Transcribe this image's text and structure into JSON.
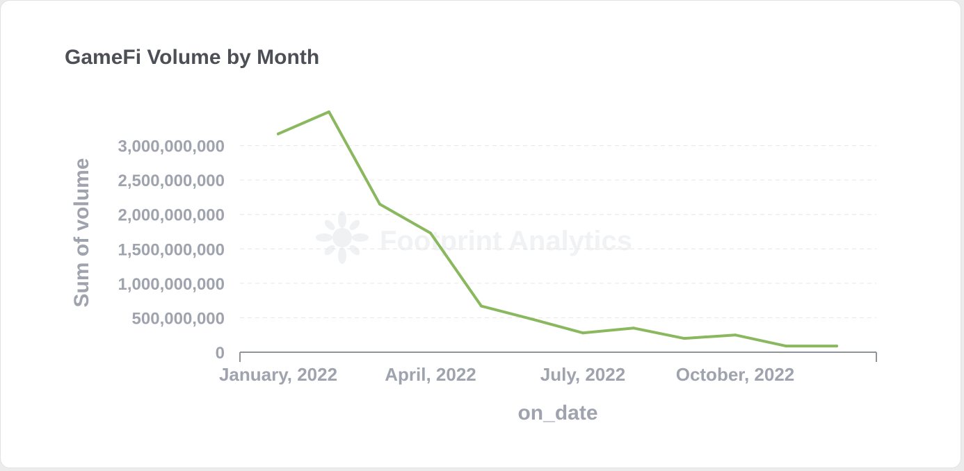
{
  "chart_data": {
    "type": "line",
    "title": "GameFi Volume by Month",
    "xlabel": "on_date",
    "ylabel": "Sum of volume",
    "x": [
      "2022-01",
      "2022-02",
      "2022-03",
      "2022-04",
      "2022-05",
      "2022-06",
      "2022-07",
      "2022-08",
      "2022-09",
      "2022-10",
      "2022-11",
      "2022-12"
    ],
    "x_tick_labels": [
      {
        "x": "2022-01",
        "label": "January, 2022"
      },
      {
        "x": "2022-04",
        "label": "April, 2022"
      },
      {
        "x": "2022-07",
        "label": "July, 2022"
      },
      {
        "x": "2022-10",
        "label": "October, 2022"
      }
    ],
    "y_ticks": [
      0,
      500000000,
      1000000000,
      1500000000,
      2000000000,
      2500000000,
      3000000000
    ],
    "y_tick_labels": [
      "0",
      "500,000,000",
      "1,000,000,000",
      "1,500,000,000",
      "2,000,000,000",
      "2,500,000,000",
      "3,000,000,000"
    ],
    "ylim": [
      0,
      3500000000
    ],
    "series": [
      {
        "values": [
          3170000000,
          3490000000,
          2150000000,
          1730000000,
          670000000,
          480000000,
          280000000,
          350000000,
          200000000,
          250000000,
          90000000,
          90000000
        ],
        "color": "#8ab85e"
      }
    ],
    "grid": true,
    "watermark": "Footprint Analytics"
  }
}
